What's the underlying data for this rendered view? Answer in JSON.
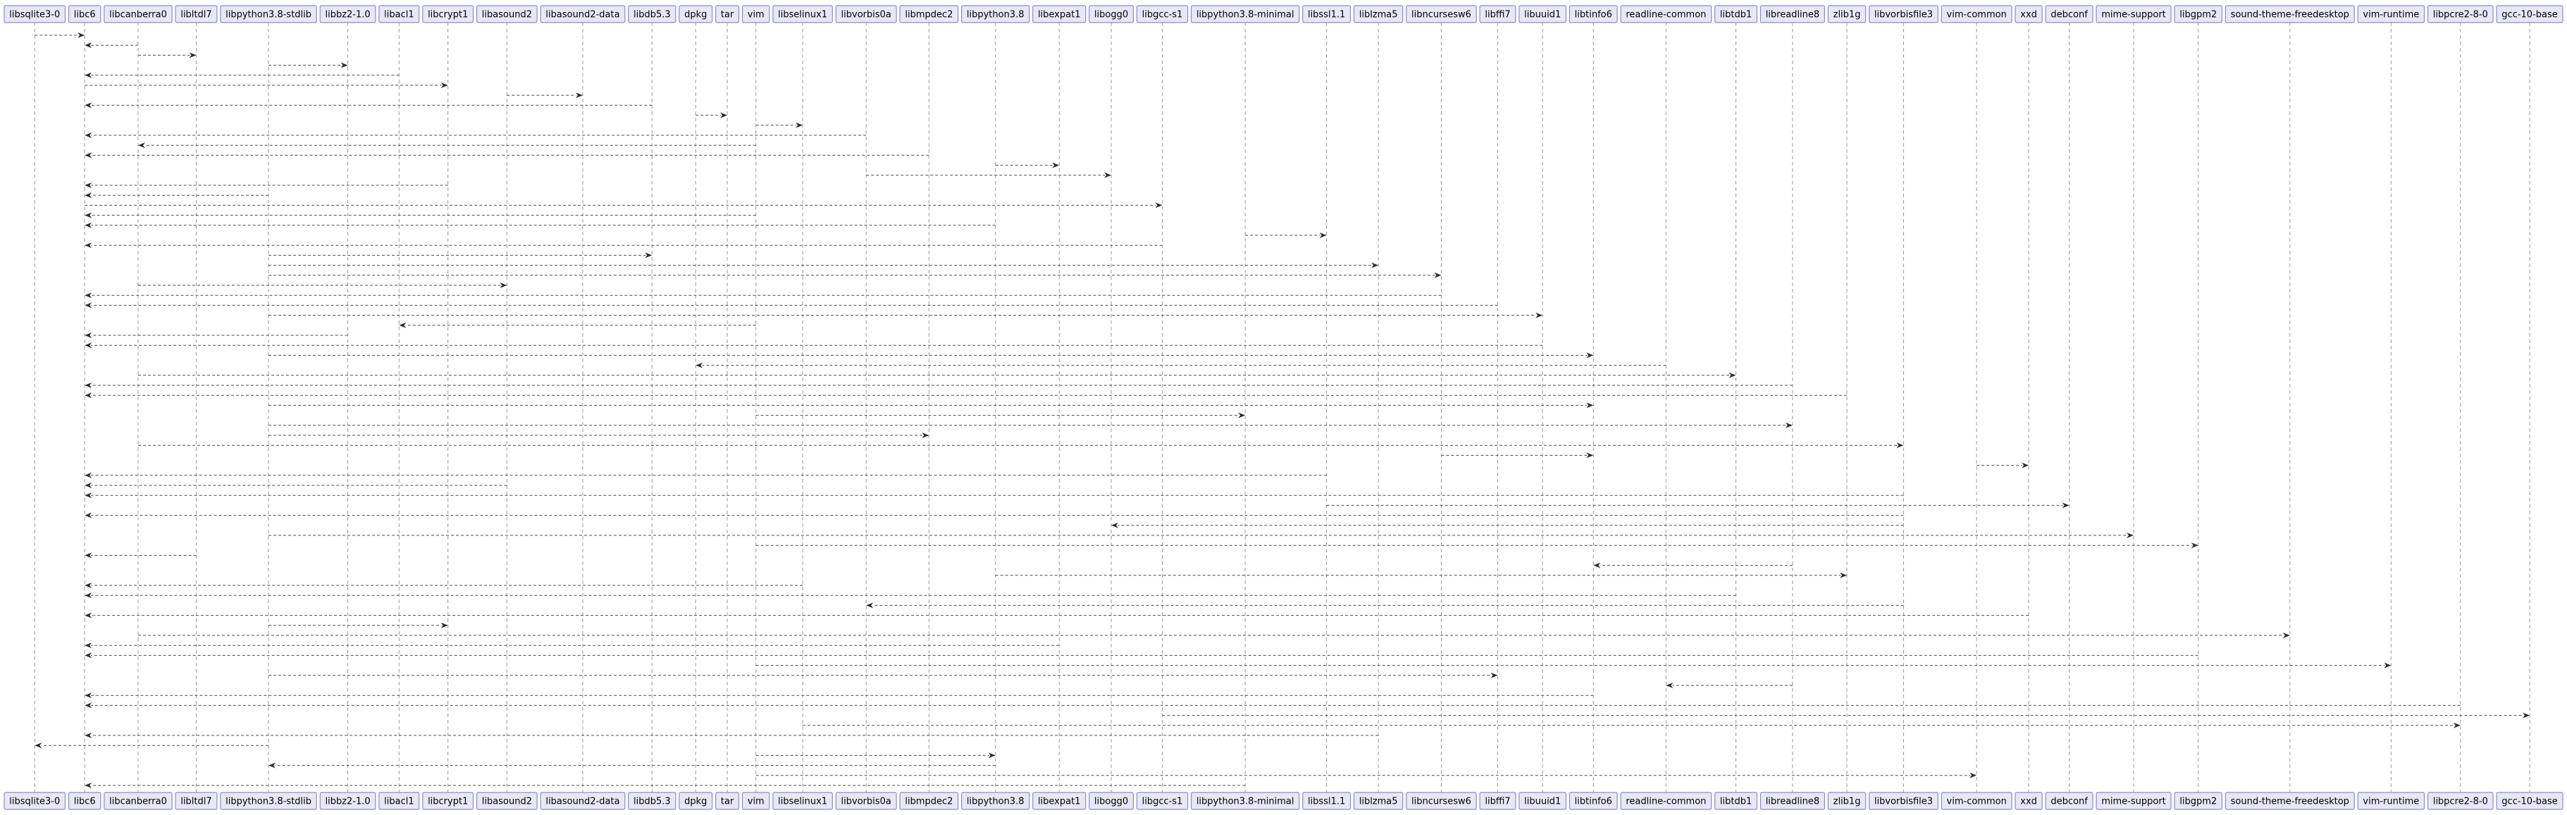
{
  "participants": [
    "libsqlite3-0",
    "libc6",
    "libcanberra0",
    "libltdl7",
    "libpython3.8-stdlib",
    "libbz2-1.0",
    "libacl1",
    "libcrypt1",
    "libasound2",
    "libasound2-data",
    "libdb5.3",
    "dpkg",
    "tar",
    "vim",
    "libselinux1",
    "libvorbis0a",
    "libmpdec2",
    "libpython3.8",
    "libexpat1",
    "libogg0",
    "libgcc-s1",
    "libpython3.8-minimal",
    "libssl1.1",
    "liblzma5",
    "libncursesw6",
    "libffi7",
    "libuuid1",
    "libtinfo6",
    "readline-common",
    "libtdb1",
    "libreadline8",
    "zlib1g",
    "libvorbisfile3",
    "vim-common",
    "xxd",
    "debconf",
    "mime-support",
    "libgpm2",
    "sound-theme-freedesktop",
    "vim-runtime",
    "libpcre2-8-0",
    "gcc-10-base"
  ],
  "messages": [
    {
      "from": "libsqlite3-0",
      "to": "libc6"
    },
    {
      "from": "libcanberra0",
      "to": "libc6"
    },
    {
      "from": "libcanberra0",
      "to": "libltdl7"
    },
    {
      "from": "libpython3.8-stdlib",
      "to": "libbz2-1.0"
    },
    {
      "from": "libacl1",
      "to": "libc6"
    },
    {
      "from": "libc6",
      "to": "libcrypt1"
    },
    {
      "from": "libasound2",
      "to": "libasound2-data"
    },
    {
      "from": "libdb5.3",
      "to": "libc6"
    },
    {
      "from": "dpkg",
      "to": "tar"
    },
    {
      "from": "vim",
      "to": "libselinux1"
    },
    {
      "from": "libvorbis0a",
      "to": "libc6"
    },
    {
      "from": "vim",
      "to": "libcanberra0"
    },
    {
      "from": "libmpdec2",
      "to": "libc6"
    },
    {
      "from": "libpython3.8",
      "to": "libexpat1"
    },
    {
      "from": "libvorbis0a",
      "to": "libogg0"
    },
    {
      "from": "libcrypt1",
      "to": "libc6"
    },
    {
      "from": "libpython3.8-stdlib",
      "to": "libc6"
    },
    {
      "from": "libc6",
      "to": "libgcc-s1"
    },
    {
      "from": "vim",
      "to": "libc6"
    },
    {
      "from": "libpython3.8",
      "to": "libc6"
    },
    {
      "from": "libpython3.8-minimal",
      "to": "libssl1.1"
    },
    {
      "from": "libgcc-s1",
      "to": "libc6"
    },
    {
      "from": "libpython3.8-stdlib",
      "to": "libdb5.3"
    },
    {
      "from": "libpython3.8-stdlib",
      "to": "liblzma5"
    },
    {
      "from": "libpython3.8-stdlib",
      "to": "libncursesw6"
    },
    {
      "from": "libcanberra0",
      "to": "libasound2"
    },
    {
      "from": "libncursesw6",
      "to": "libc6"
    },
    {
      "from": "libffi7",
      "to": "libc6"
    },
    {
      "from": "libpython3.8-stdlib",
      "to": "libuuid1"
    },
    {
      "from": "vim",
      "to": "libacl1"
    },
    {
      "from": "libbz2-1.0",
      "to": "libc6"
    },
    {
      "from": "libuuid1",
      "to": "libc6"
    },
    {
      "from": "libpython3.8-stdlib",
      "to": "libtinfo6"
    },
    {
      "from": "readline-common",
      "to": "dpkg"
    },
    {
      "from": "libcanberra0",
      "to": "libtdb1"
    },
    {
      "from": "libreadline8",
      "to": "libc6"
    },
    {
      "from": "zlib1g",
      "to": "libc6"
    },
    {
      "from": "libpython3.8-stdlib",
      "to": "libtinfo6"
    },
    {
      "from": "vim",
      "to": "libpython3.8-minimal"
    },
    {
      "from": "libpython3.8-stdlib",
      "to": "libreadline8"
    },
    {
      "from": "libpython3.8-stdlib",
      "to": "libmpdec2"
    },
    {
      "from": "libcanberra0",
      "to": "libvorbisfile3"
    },
    {
      "from": "libncursesw6",
      "to": "libtinfo6"
    },
    {
      "from": "vim-common",
      "to": "xxd"
    },
    {
      "from": "libssl1.1",
      "to": "libc6"
    },
    {
      "from": "libasound2",
      "to": "libc6"
    },
    {
      "from": "libvorbisfile3",
      "to": "libc6"
    },
    {
      "from": "libssl1.1",
      "to": "debconf"
    },
    {
      "from": "libvorbisfile3",
      "to": "libc6"
    },
    {
      "from": "libvorbisfile3",
      "to": "libogg0"
    },
    {
      "from": "libpython3.8-stdlib",
      "to": "mime-support"
    },
    {
      "from": "vim",
      "to": "libgpm2"
    },
    {
      "from": "libltdl7",
      "to": "libc6"
    },
    {
      "from": "libreadline8",
      "to": "libtinfo6"
    },
    {
      "from": "libpython3.8",
      "to": "zlib1g"
    },
    {
      "from": "libselinux1",
      "to": "libc6"
    },
    {
      "from": "libtdb1",
      "to": "libc6"
    },
    {
      "from": "libvorbisfile3",
      "to": "libvorbis0a"
    },
    {
      "from": "xxd",
      "to": "libc6"
    },
    {
      "from": "libpython3.8-stdlib",
      "to": "libcrypt1"
    },
    {
      "from": "libcanberra0",
      "to": "sound-theme-freedesktop"
    },
    {
      "from": "libexpat1",
      "to": "libc6"
    },
    {
      "from": "libgpm2",
      "to": "libc6"
    },
    {
      "from": "vim",
      "to": "vim-runtime"
    },
    {
      "from": "libpython3.8-stdlib",
      "to": "libffi7"
    },
    {
      "from": "libreadline8",
      "to": "readline-common"
    },
    {
      "from": "libtinfo6",
      "to": "libc6"
    },
    {
      "from": "libpcre2-8-0",
      "to": "libc6"
    },
    {
      "from": "libgcc-s1",
      "to": "gcc-10-base"
    },
    {
      "from": "libselinux1",
      "to": "libpcre2-8-0"
    },
    {
      "from": "liblzma5",
      "to": "libc6"
    },
    {
      "from": "libpython3.8-stdlib",
      "to": "libsqlite3-0"
    },
    {
      "from": "vim",
      "to": "libpython3.8"
    },
    {
      "from": "libpython3.8",
      "to": "libpython3.8-stdlib"
    },
    {
      "from": "vim",
      "to": "vim-common"
    },
    {
      "from": "libpython3.8-minimal",
      "to": "libc6"
    }
  ]
}
